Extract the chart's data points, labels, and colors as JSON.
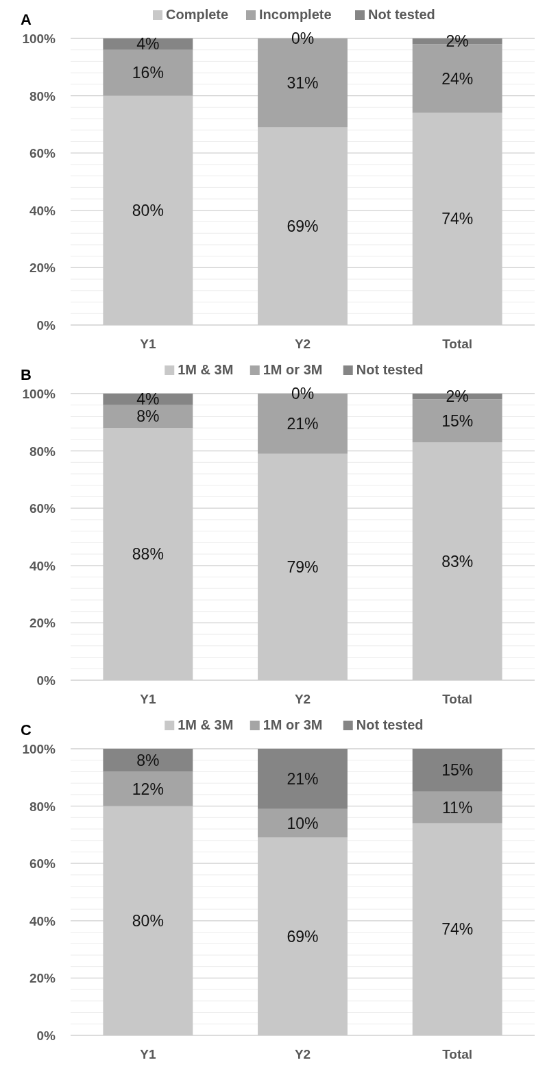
{
  "chart_data": [
    {
      "type": "bar",
      "title": "A",
      "stacked": true,
      "categories": [
        "Y1",
        "Y2",
        "Total"
      ],
      "legend": "top",
      "grid": "y",
      "ylim": [
        0,
        100
      ],
      "yticks": [
        {
          "value": 0,
          "label": "0%"
        },
        {
          "value": 4,
          "label": null
        },
        {
          "value": 8,
          "label": null
        },
        {
          "value": 12,
          "label": null
        },
        {
          "value": 16,
          "label": null
        },
        {
          "value": 20,
          "label": "20%"
        },
        {
          "value": 24,
          "label": null
        },
        {
          "value": 28,
          "label": null
        },
        {
          "value": 32,
          "label": null
        },
        {
          "value": 36,
          "label": null
        },
        {
          "value": 40,
          "label": "40%"
        },
        {
          "value": 44,
          "label": null
        },
        {
          "value": 48,
          "label": null
        },
        {
          "value": 52,
          "label": null
        },
        {
          "value": 56,
          "label": null
        },
        {
          "value": 60,
          "label": "60%"
        },
        {
          "value": 64,
          "label": null
        },
        {
          "value": 68,
          "label": null
        },
        {
          "value": 72,
          "label": null
        },
        {
          "value": 76,
          "label": null
        },
        {
          "value": 80,
          "label": "80%"
        },
        {
          "value": 84,
          "label": null
        },
        {
          "value": 88,
          "label": null
        },
        {
          "value": 92,
          "label": null
        },
        {
          "value": 96,
          "label": null
        },
        {
          "value": 100,
          "label": "100%"
        }
      ],
      "series": [
        {
          "name": "Complete",
          "color": "#c8c8c8",
          "values": [
            80,
            69,
            74
          ],
          "value_labels": [
            "80%",
            "69%",
            "74%"
          ]
        },
        {
          "name": "Incomplete",
          "color": "#a5a5a5",
          "values": [
            16,
            31,
            24
          ],
          "value_labels": [
            "16%",
            "31%",
            "24%"
          ]
        },
        {
          "name": "Not tested",
          "color": "#858585",
          "values": [
            4,
            0,
            2
          ],
          "value_labels": [
            "4%",
            "0%",
            "2%"
          ]
        }
      ]
    },
    {
      "type": "bar",
      "title": "B",
      "stacked": true,
      "categories": [
        "Y1",
        "Y2",
        "Total"
      ],
      "legend": "top",
      "grid": "y",
      "ylim": [
        0,
        100
      ],
      "yticks": [
        {
          "value": 0,
          "label": "0%"
        },
        {
          "value": 4,
          "label": null
        },
        {
          "value": 8,
          "label": null
        },
        {
          "value": 12,
          "label": null
        },
        {
          "value": 16,
          "label": null
        },
        {
          "value": 20,
          "label": "20%"
        },
        {
          "value": 24,
          "label": null
        },
        {
          "value": 28,
          "label": null
        },
        {
          "value": 32,
          "label": null
        },
        {
          "value": 36,
          "label": null
        },
        {
          "value": 40,
          "label": "40%"
        },
        {
          "value": 44,
          "label": null
        },
        {
          "value": 48,
          "label": null
        },
        {
          "value": 52,
          "label": null
        },
        {
          "value": 56,
          "label": null
        },
        {
          "value": 60,
          "label": "60%"
        },
        {
          "value": 64,
          "label": null
        },
        {
          "value": 68,
          "label": null
        },
        {
          "value": 72,
          "label": null
        },
        {
          "value": 76,
          "label": null
        },
        {
          "value": 80,
          "label": "80%"
        },
        {
          "value": 84,
          "label": null
        },
        {
          "value": 88,
          "label": null
        },
        {
          "value": 92,
          "label": null
        },
        {
          "value": 96,
          "label": null
        },
        {
          "value": 100,
          "label": "100%"
        }
      ],
      "series": [
        {
          "name": "1M & 3M",
          "color": "#c8c8c8",
          "values": [
            88,
            79,
            83
          ],
          "value_labels": [
            "88%",
            "79%",
            "83%"
          ]
        },
        {
          "name": "1M or 3M",
          "color": "#a5a5a5",
          "values": [
            8,
            21,
            15
          ],
          "value_labels": [
            "8%",
            "21%",
            "15%"
          ]
        },
        {
          "name": "Not tested",
          "color": "#858585",
          "values": [
            4,
            0,
            2
          ],
          "value_labels": [
            "4%",
            "0%",
            "2%"
          ]
        }
      ]
    },
    {
      "type": "bar",
      "title": "C",
      "stacked": true,
      "categories": [
        "Y1",
        "Y2",
        "Total"
      ],
      "legend": "top",
      "grid": "y",
      "ylim": [
        0,
        100
      ],
      "yticks": [
        {
          "value": 0,
          "label": "0%"
        },
        {
          "value": 4,
          "label": null
        },
        {
          "value": 8,
          "label": null
        },
        {
          "value": 12,
          "label": null
        },
        {
          "value": 16,
          "label": null
        },
        {
          "value": 20,
          "label": "20%"
        },
        {
          "value": 24,
          "label": null
        },
        {
          "value": 28,
          "label": null
        },
        {
          "value": 32,
          "label": null
        },
        {
          "value": 36,
          "label": null
        },
        {
          "value": 40,
          "label": "40%"
        },
        {
          "value": 44,
          "label": null
        },
        {
          "value": 48,
          "label": null
        },
        {
          "value": 52,
          "label": null
        },
        {
          "value": 56,
          "label": null
        },
        {
          "value": 60,
          "label": "60%"
        },
        {
          "value": 64,
          "label": null
        },
        {
          "value": 68,
          "label": null
        },
        {
          "value": 72,
          "label": null
        },
        {
          "value": 76,
          "label": null
        },
        {
          "value": 80,
          "label": "80%"
        },
        {
          "value": 84,
          "label": null
        },
        {
          "value": 88,
          "label": null
        },
        {
          "value": 92,
          "label": null
        },
        {
          "value": 96,
          "label": null
        },
        {
          "value": 100,
          "label": "100%"
        }
      ],
      "series": [
        {
          "name": "1M & 3M",
          "color": "#c8c8c8",
          "values": [
            80,
            69,
            74
          ],
          "value_labels": [
            "80%",
            "69%",
            "74%"
          ]
        },
        {
          "name": "1M or 3M",
          "color": "#a5a5a5",
          "values": [
            12,
            10,
            11
          ],
          "value_labels": [
            "12%",
            "10%",
            "11%"
          ]
        },
        {
          "name": "Not tested",
          "color": "#858585",
          "values": [
            8,
            21,
            15
          ],
          "value_labels": [
            "8%",
            "21%",
            "15%"
          ]
        }
      ]
    }
  ]
}
